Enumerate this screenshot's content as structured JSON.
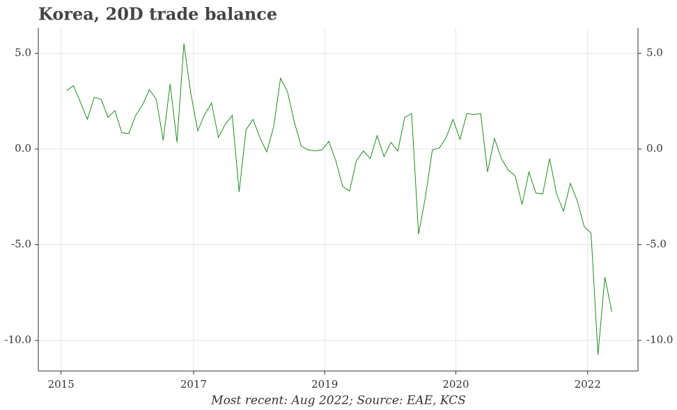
{
  "chart_data": {
    "type": "line",
    "title": "Korea, 20D trade balance",
    "footnote": "Most recent: Aug 2022; Source: EAE, KCS",
    "x": [
      0,
      1,
      2,
      3,
      4,
      5,
      6,
      7,
      8,
      9,
      10,
      11,
      12,
      13,
      14,
      15,
      16,
      17,
      18,
      19,
      20,
      21,
      22,
      23,
      24,
      25,
      26,
      27,
      28,
      29,
      30,
      31,
      32,
      33,
      34,
      35,
      36,
      37,
      38,
      39,
      40,
      41,
      42,
      43,
      44,
      45,
      46,
      47,
      48,
      49,
      50,
      51,
      52,
      53,
      54,
      55,
      56,
      57,
      58,
      59,
      60,
      61,
      62,
      63,
      64,
      65,
      66,
      67,
      68,
      69,
      70,
      71,
      72,
      73,
      74,
      75,
      76,
      77,
      78,
      79
    ],
    "series": [
      {
        "name": "20D trade balance",
        "color": "#1e8c1e",
        "values": [
          3.05,
          3.3,
          2.45,
          1.55,
          2.7,
          2.6,
          1.65,
          2.0,
          0.85,
          0.8,
          1.75,
          2.3,
          3.1,
          2.6,
          0.45,
          3.4,
          0.35,
          5.5,
          2.9,
          0.95,
          1.8,
          2.4,
          0.6,
          1.3,
          1.75,
          -2.25,
          1.0,
          1.55,
          0.6,
          -0.15,
          1.15,
          3.7,
          3.0,
          1.4,
          0.15,
          -0.05,
          -0.1,
          -0.05,
          0.4,
          -0.6,
          -1.95,
          -2.2,
          -0.6,
          -0.1,
          -0.5,
          0.7,
          -0.4,
          0.35,
          -0.1,
          1.65,
          1.85,
          -4.45,
          -2.5,
          -0.05,
          0.05,
          0.6,
          1.55,
          0.5,
          1.85,
          1.8,
          1.85,
          -1.2,
          0.55,
          -0.5,
          -1.1,
          -1.4,
          -2.9,
          -1.2,
          -2.3,
          -2.35,
          -0.5,
          -2.35,
          -3.25,
          -1.8,
          -2.7,
          -4.05,
          -4.4,
          -10.75,
          -6.7,
          -8.5
        ]
      }
    ],
    "xlim": [
      -4.1,
      82.8
    ],
    "xticks": [
      {
        "value": -0.8,
        "label": "2015"
      },
      {
        "value": 18.4,
        "label": "2017"
      },
      {
        "value": 37.4,
        "label": "2019"
      },
      {
        "value": 56.4,
        "label": "2020"
      },
      {
        "value": 75.5,
        "label": "2022"
      }
    ],
    "ylim": [
      -11.6,
      6.33
    ],
    "yticks": [
      {
        "value": 5,
        "label": "5.0"
      },
      {
        "value": 0,
        "label": "0.0"
      },
      {
        "value": -5,
        "label": "-5.0"
      },
      {
        "value": -10,
        "label": "-10.0"
      }
    ],
    "grid": true
  }
}
